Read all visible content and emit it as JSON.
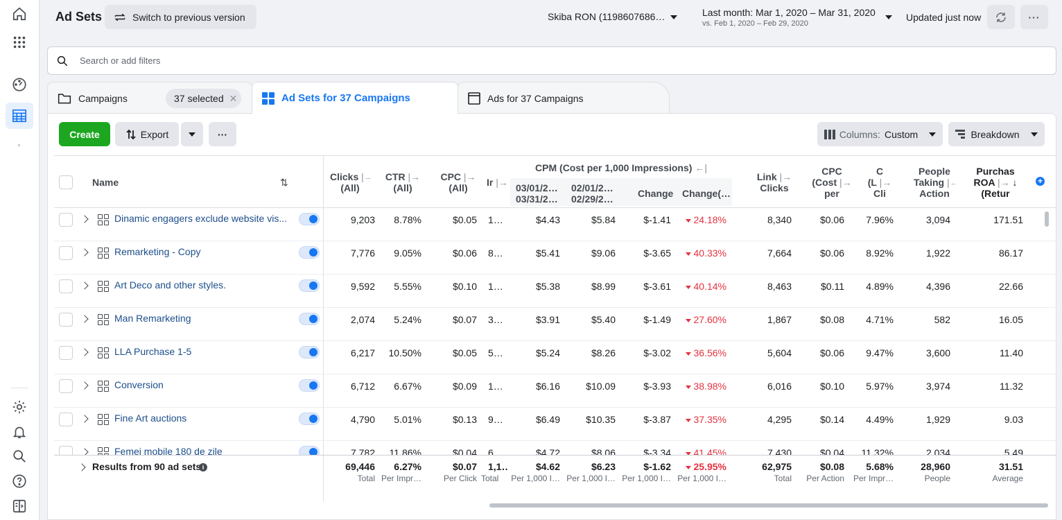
{
  "header": {
    "title": "Ad Sets",
    "switch_label": "Switch to previous version",
    "account": "Skiba RON (1198607686…",
    "date_main": "Last month: Mar 1, 2020 – Mar 31, 2020",
    "date_sub": "vs. Feb 1, 2020 – Feb 29, 2020",
    "updated": "Updated just now",
    "refresh_icon": "refresh-icon",
    "more_icon": "more-icon"
  },
  "search": {
    "placeholder": "Search or add filters"
  },
  "tabs": [
    {
      "label": "Campaigns",
      "selected_chip": "37 selected"
    },
    {
      "label": "Ad Sets for 37 Campaigns"
    },
    {
      "label": "Ads for 37 Campaigns"
    }
  ],
  "toolbar": {
    "create": "Create",
    "export": "Export",
    "more": "···",
    "columns_prefix": "Columns:",
    "columns_value": "Custom",
    "breakdown": "Breakdown"
  },
  "table": {
    "headers": {
      "name": "Name",
      "clicks": [
        "Clicks",
        "(All)"
      ],
      "ctr": [
        "CTR",
        "(All)"
      ],
      "cpc": [
        "CPC",
        "(All)"
      ],
      "impr": "Ir",
      "cpm_group": "CPM (Cost per 1,000 Impressions)",
      "cpm_cur": [
        "03/01/2…",
        "03/31/2…"
      ],
      "cpm_prev": [
        "02/01/2…",
        "02/29/2…"
      ],
      "change": "Change",
      "change_pct": "Change(…",
      "link_clicks": [
        "Link",
        "Clicks"
      ],
      "cpc_cost": [
        "CPC",
        "(Cost",
        "per"
      ],
      "c_col": [
        "C",
        "(L",
        "Cli"
      ],
      "people": [
        "People",
        "Taking",
        "Action"
      ],
      "roas": [
        "Purchas",
        "ROA",
        "(Retur"
      ]
    },
    "rows": [
      {
        "name": "Dinamic engagers exclude website vis...",
        "clicks": "9,203",
        "ctr": "8.78%",
        "cpc": "$0.05",
        "impr": "1…",
        "cpm_cur": "$4.43",
        "cpm_prev": "$5.84",
        "change": "$-1.41",
        "change_pct": "24.18%",
        "link_clicks": "8,340",
        "cpc_cost": "$0.06",
        "c_col": "7.96%",
        "people": "3,094",
        "roas": "171.51"
      },
      {
        "name": "Remarketing - Copy",
        "clicks": "7,776",
        "ctr": "9.05%",
        "cpc": "$0.06",
        "impr": "8…",
        "cpm_cur": "$5.41",
        "cpm_prev": "$9.06",
        "change": "$-3.65",
        "change_pct": "40.33%",
        "link_clicks": "7,664",
        "cpc_cost": "$0.06",
        "c_col": "8.92%",
        "people": "1,922",
        "roas": "86.17"
      },
      {
        "name": "Art Deco and other styles.",
        "clicks": "9,592",
        "ctr": "5.55%",
        "cpc": "$0.10",
        "impr": "1…",
        "cpm_cur": "$5.38",
        "cpm_prev": "$8.99",
        "change": "$-3.61",
        "change_pct": "40.14%",
        "link_clicks": "8,463",
        "cpc_cost": "$0.11",
        "c_col": "4.89%",
        "people": "4,396",
        "roas": "22.66"
      },
      {
        "name": "Man Remarketing",
        "clicks": "2,074",
        "ctr": "5.24%",
        "cpc": "$0.07",
        "impr": "3…",
        "cpm_cur": "$3.91",
        "cpm_prev": "$5.40",
        "change": "$-1.49",
        "change_pct": "27.60%",
        "link_clicks": "1,867",
        "cpc_cost": "$0.08",
        "c_col": "4.71%",
        "people": "582",
        "roas": "16.05"
      },
      {
        "name": "LLA Purchase 1-5",
        "clicks": "6,217",
        "ctr": "10.50%",
        "cpc": "$0.05",
        "impr": "5…",
        "cpm_cur": "$5.24",
        "cpm_prev": "$8.26",
        "change": "$-3.02",
        "change_pct": "36.56%",
        "link_clicks": "5,604",
        "cpc_cost": "$0.06",
        "c_col": "9.47%",
        "people": "3,600",
        "roas": "11.40"
      },
      {
        "name": "Conversion",
        "clicks": "6,712",
        "ctr": "6.67%",
        "cpc": "$0.09",
        "impr": "1…",
        "cpm_cur": "$6.16",
        "cpm_prev": "$10.09",
        "change": "$-3.93",
        "change_pct": "38.98%",
        "link_clicks": "6,016",
        "cpc_cost": "$0.10",
        "c_col": "5.97%",
        "people": "3,974",
        "roas": "11.32"
      },
      {
        "name": "Fine Art auctions",
        "clicks": "4,790",
        "ctr": "5.01%",
        "cpc": "$0.13",
        "impr": "9…",
        "cpm_cur": "$6.49",
        "cpm_prev": "$10.35",
        "change": "$-3.87",
        "change_pct": "37.35%",
        "link_clicks": "4,295",
        "cpc_cost": "$0.14",
        "c_col": "4.49%",
        "people": "1,929",
        "roas": "9.03"
      },
      {
        "name": "Femei mobile 180 de zile",
        "clicks": "7,782",
        "ctr": "11.86%",
        "cpc": "$0.04",
        "impr": "6…",
        "cpm_cur": "$4.72",
        "cpm_prev": "$8.06",
        "change": "$-3.34",
        "change_pct": "41.45%",
        "link_clicks": "7,430",
        "cpc_cost": "$0.04",
        "c_col": "11.32%",
        "people": "2,034",
        "roas": "5.49"
      }
    ],
    "totals": {
      "label": "Results from 90 ad sets",
      "clicks": [
        "69,446",
        "Total"
      ],
      "ctr": [
        "6.27%",
        "Per Impr…"
      ],
      "cpc": [
        "$0.07",
        "Per Click"
      ],
      "impr": [
        "1,1…",
        "Total"
      ],
      "cpm_cur": [
        "$4.62",
        "Per 1,000 I…"
      ],
      "cpm_prev": [
        "$6.23",
        "Per 1,000 I…"
      ],
      "change": [
        "$-1.62",
        "Per 1,000 I…"
      ],
      "change_pct": [
        "25.95%",
        "Per 1,000 I…"
      ],
      "link_clicks": [
        "62,975",
        "Total"
      ],
      "cpc_cost": [
        "$0.08",
        "Per Action"
      ],
      "c_col": [
        "5.68%",
        "Per Impr…"
      ],
      "people": [
        "28,960",
        "People"
      ],
      "roas": [
        "31.51",
        "Average"
      ]
    }
  }
}
